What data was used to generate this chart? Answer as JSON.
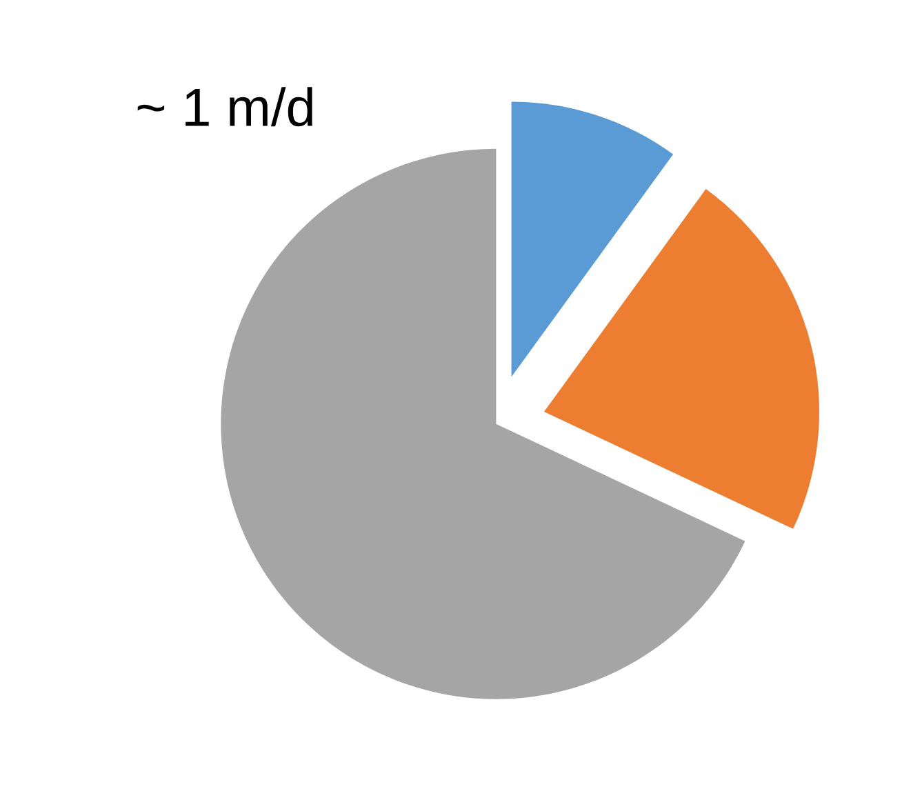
{
  "chart_data": {
    "type": "pie",
    "title": "~ 1 m/d",
    "categories": [
      null,
      null,
      null
    ],
    "values": [
      10,
      22,
      68
    ],
    "colors": [
      "#5b9bd5",
      "#ed7d31",
      "#a5a5a5"
    ]
  }
}
